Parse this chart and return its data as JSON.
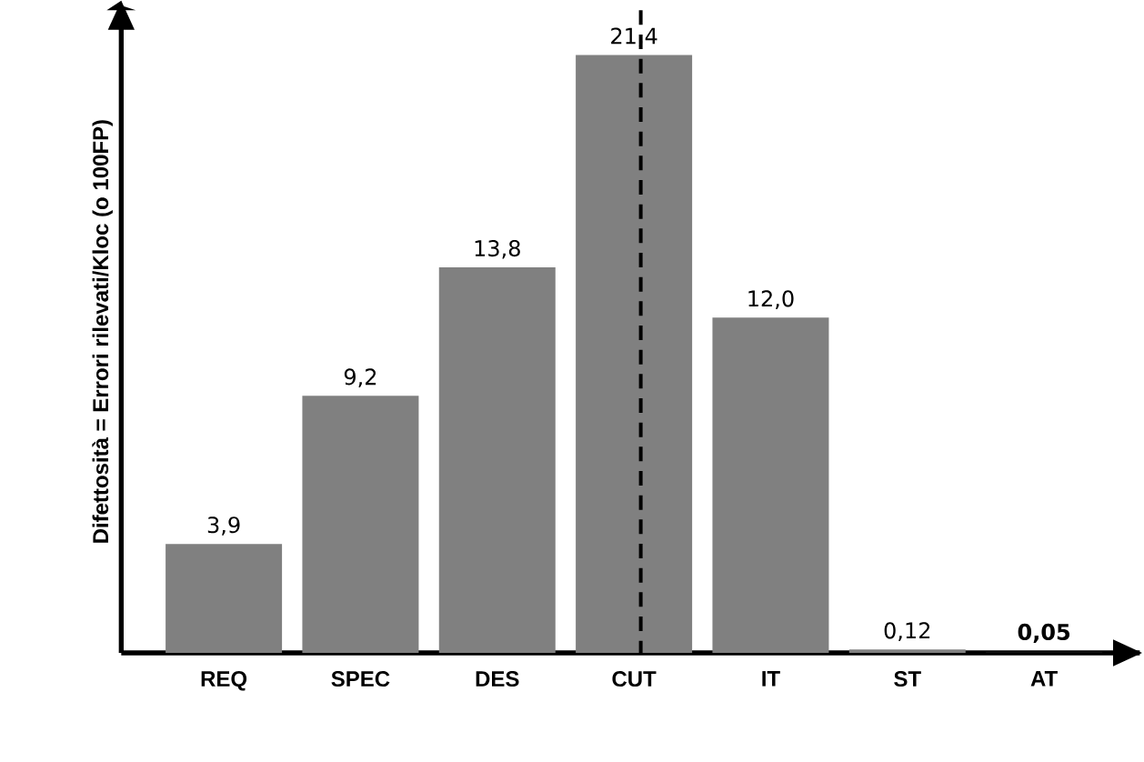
{
  "chart_data": {
    "type": "bar",
    "ylabel": "Difettosità = Errori rilevati/Kloc (o 100FP)",
    "categories": [
      "REQ",
      "SPEC",
      "DES",
      "CUT",
      "IT",
      "ST",
      "AT"
    ],
    "values": [
      3.9,
      9.2,
      13.8,
      21.4,
      12.0,
      0.12,
      0.05
    ],
    "value_labels": [
      "3,9",
      "9,2",
      "13,8",
      "21,4",
      "12,0",
      "0,12",
      "**0,05**"
    ],
    "colors": [
      "#808080",
      "#808080",
      "#808080",
      "#808080",
      "#808080",
      "#808080",
      "#111111"
    ],
    "ylim": [
      0,
      23
    ],
    "ref_lines": [
      {
        "axis": "x",
        "value": "CUT",
        "line_style": "dashed",
        "color": "#000000"
      }
    ],
    "tick_labels": "x"
  }
}
